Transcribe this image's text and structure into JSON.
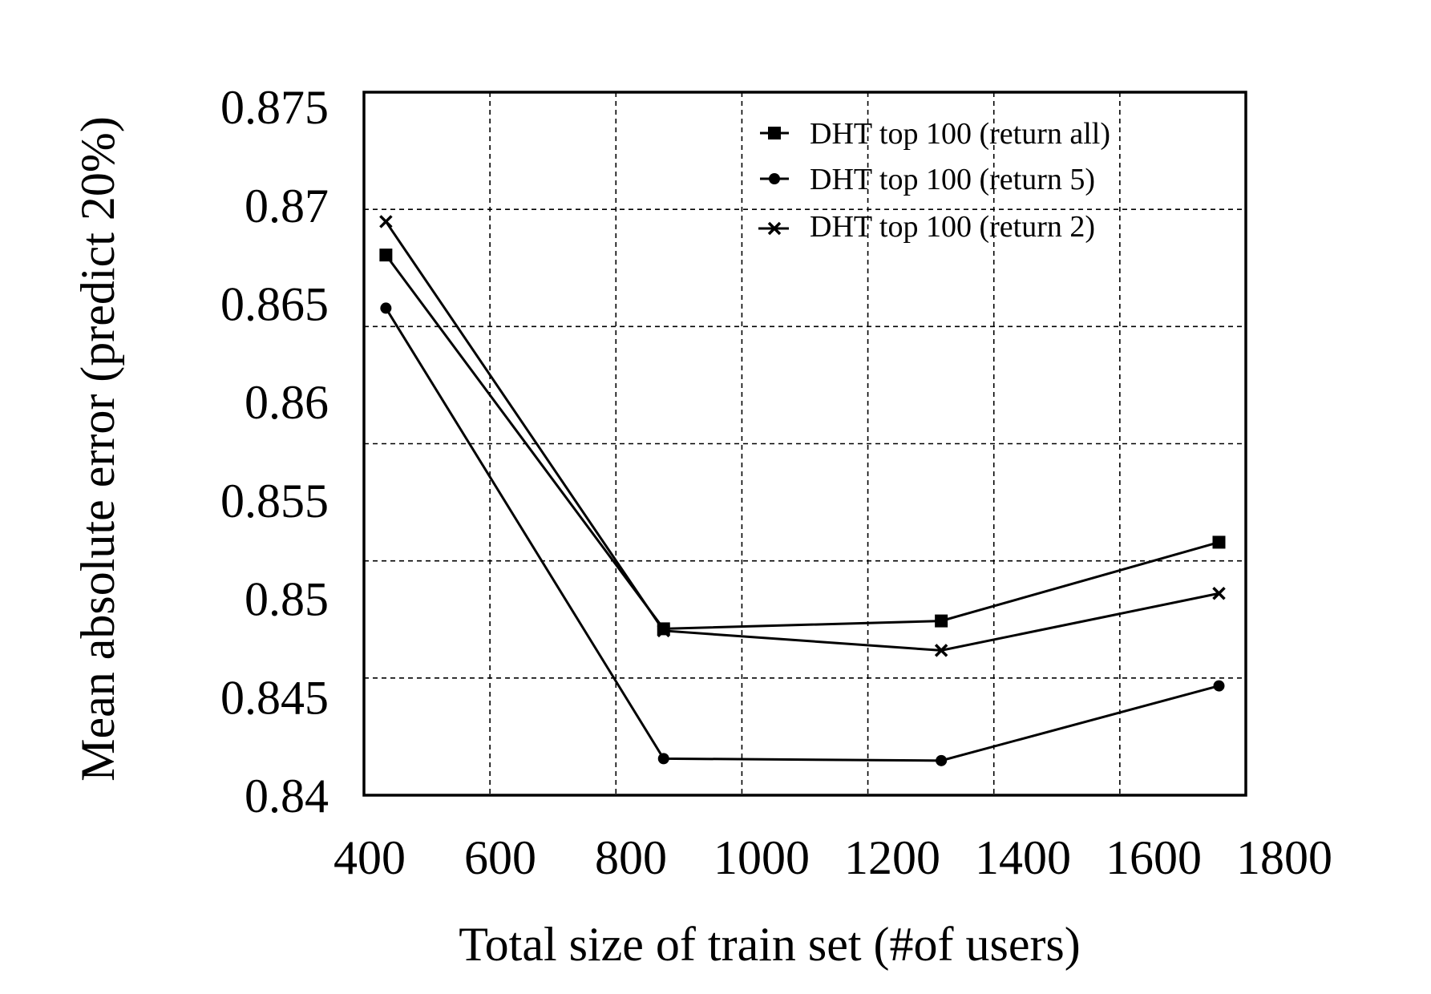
{
  "chart_data": {
    "type": "line",
    "title": "",
    "xlabel": "Total size of train set (#of users)",
    "ylabel": "Mean absolute error (predict 20%)",
    "xlim": [
      400,
      1800
    ],
    "ylim": [
      0.84,
      0.875
    ],
    "x_ticks": [
      "400",
      "600",
      "800",
      "1000",
      "1200",
      "1400",
      "1600",
      "1800"
    ],
    "x_tick_values": [
      400,
      600,
      800,
      1000,
      1200,
      1400,
      1600,
      1800
    ],
    "y_ticks": [
      "0.875",
      "0.87",
      "0.865",
      "0.86",
      "0.855",
      "0.85",
      "0.845",
      "0.84"
    ],
    "y_tick_values": [
      0.875,
      0.87,
      0.865,
      0.86,
      0.855,
      0.85,
      0.845,
      0.84
    ],
    "grid": true,
    "legend_position": "top-right",
    "x": [
      425,
      850,
      1275,
      1700
    ],
    "series": [
      {
        "name": "DHT top 100 (return all)",
        "marker": "square",
        "values": [
          0.8675,
          0.8485,
          0.8489,
          0.8529
        ]
      },
      {
        "name": "DHT top 100 (return 5)",
        "marker": "circle",
        "values": [
          0.8648,
          0.8419,
          0.8418,
          0.8456
        ]
      },
      {
        "name": "DHT top 100 (return 2)",
        "marker": "x",
        "values": [
          0.8692,
          0.8484,
          0.8474,
          0.8503
        ]
      }
    ]
  }
}
